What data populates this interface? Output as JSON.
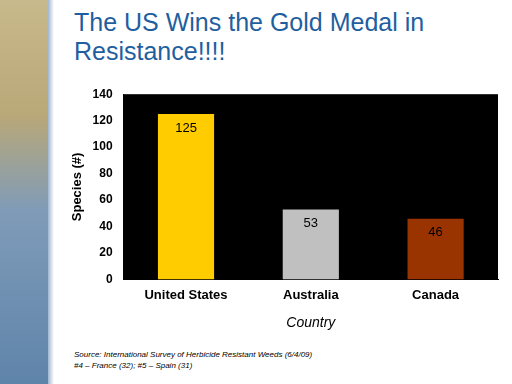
{
  "chart_data": {
    "type": "bar",
    "title": "The US Wins the Gold Medal in Resistance!!!!",
    "categories": [
      "United States",
      "Australia",
      "Canada"
    ],
    "values": [
      125,
      53,
      46
    ],
    "colors": [
      "#ffcc00",
      "#c0c0c0",
      "#993300"
    ],
    "x_label": "Country",
    "y_label": "Species (#)",
    "ylim": [
      0,
      140
    ],
    "yticks": [
      0,
      20,
      40,
      60,
      80,
      100,
      120,
      140
    ],
    "grid": false,
    "data_labels": true,
    "annotations": [
      "Source: International Survey of Herbicide Resistant Weeds (6/4/09)",
      "#4 – France (32); #5 – Spain (31)"
    ]
  }
}
